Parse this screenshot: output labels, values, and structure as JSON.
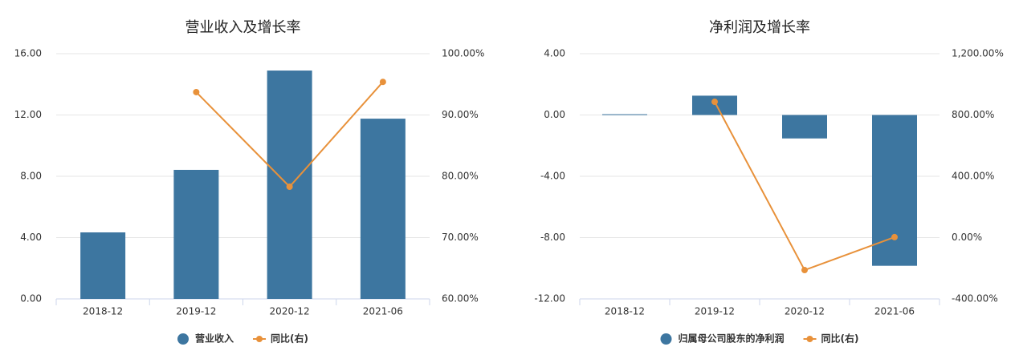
{
  "chart_data": [
    {
      "type": "bar",
      "title": "营业收入及增长率",
      "categories": [
        "2018-12",
        "2019-12",
        "2020-12",
        "2021-06"
      ],
      "series": [
        {
          "name": "营业收入",
          "type": "bar",
          "color": "#3d76a0",
          "values": [
            4.34,
            8.42,
            14.9,
            11.76
          ]
        },
        {
          "name": "同比(右)",
          "type": "line",
          "axis": "y2",
          "color": "#e8913a",
          "values": [
            null,
            93.73,
            78.3,
            95.4
          ]
        }
      ],
      "ylim": [
        0,
        16
      ],
      "yticks": [
        {
          "value": 0,
          "label": "0.00"
        },
        {
          "value": 4,
          "label": "4.00"
        },
        {
          "value": 8,
          "label": "8.00"
        },
        {
          "value": 12,
          "label": "12.00"
        },
        {
          "value": 16,
          "label": "16.00"
        }
      ],
      "y2lim": [
        60,
        100
      ],
      "y2ticks": [
        {
          "value": 60,
          "label": "60.00%"
        },
        {
          "value": 70,
          "label": "70.00%"
        },
        {
          "value": 80,
          "label": "80.00%"
        },
        {
          "value": 90,
          "label": "90.00%"
        },
        {
          "value": 100,
          "label": "100.00%"
        }
      ],
      "grid": true
    },
    {
      "type": "bar",
      "title": "净利润及增长率",
      "categories": [
        "2018-12",
        "2019-12",
        "2020-12",
        "2021-06"
      ],
      "series": [
        {
          "name": "归属母公司股东的净利润",
          "type": "bar",
          "color": "#3d76a0",
          "values": [
            0.05,
            1.26,
            -1.53,
            -9.84
          ]
        },
        {
          "name": "同比(右)",
          "type": "line",
          "axis": "y2",
          "color": "#e8913a",
          "values": [
            null,
            886,
            -212,
            3
          ]
        }
      ],
      "ylim": [
        -12,
        4
      ],
      "yticks": [
        {
          "value": -12,
          "label": "-12.00"
        },
        {
          "value": -8,
          "label": "-8.00"
        },
        {
          "value": -4,
          "label": "-4.00"
        },
        {
          "value": 0,
          "label": "0.00"
        },
        {
          "value": 4,
          "label": "4.00"
        }
      ],
      "y2lim": [
        -400,
        1200
      ],
      "y2ticks": [
        {
          "value": -400,
          "label": "-400.00%"
        },
        {
          "value": 0,
          "label": "0.00%"
        },
        {
          "value": 400,
          "label": "400.00%"
        },
        {
          "value": 800,
          "label": "800.00%"
        },
        {
          "value": 1200,
          "label": "1,200.00%"
        }
      ],
      "grid": true
    }
  ]
}
